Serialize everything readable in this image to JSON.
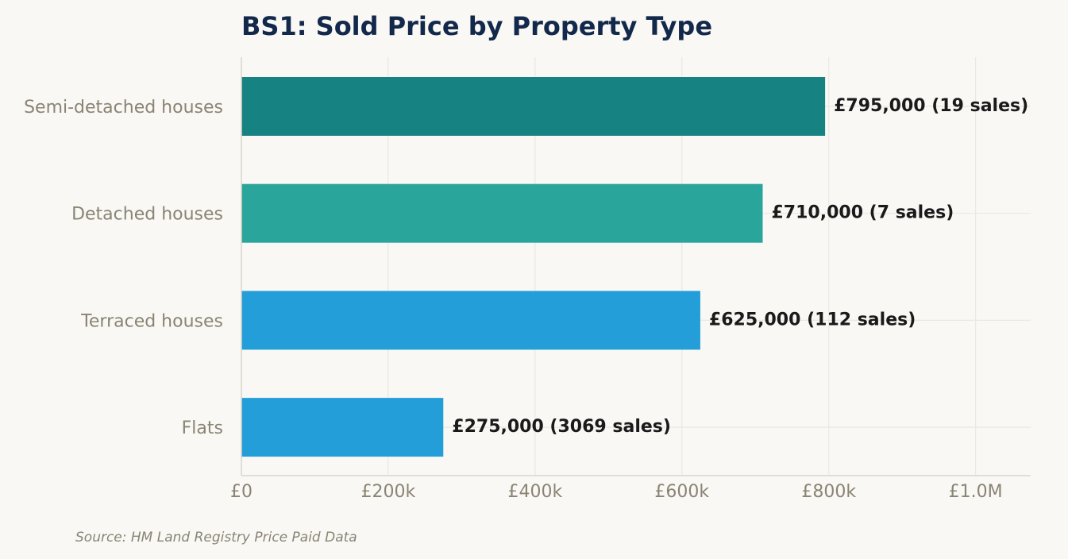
{
  "chart_data": {
    "type": "bar",
    "orientation": "horizontal",
    "title": "BS1: Sold Price by Property Type",
    "categories": [
      "Semi-detached houses",
      "Detached houses",
      "Terraced houses",
      "Flats"
    ],
    "values": [
      795000,
      710000,
      625000,
      275000
    ],
    "value_labels": [
      "£795,000  (19 sales)",
      "£710,000  (7 sales)",
      "£625,000  (112 sales)",
      "£275,000  (3069 sales)"
    ],
    "bar_colors": [
      "#178282",
      "#2aa59b",
      "#239ed9",
      "#239ed9"
    ],
    "xlim": [
      0,
      1075000
    ],
    "xticks": [
      0,
      200000,
      400000,
      600000,
      800000,
      1000000
    ],
    "xtick_labels": [
      "£0",
      "£200k",
      "£400k",
      "£600k",
      "£800k",
      "£1.0M"
    ],
    "xlabel": "",
    "ylabel": "",
    "grid": "vertical",
    "legend": "none"
  },
  "footer": {
    "source": "Source: HM Land Registry Price Paid Data"
  },
  "colors": {
    "background": "#f9f8f4",
    "title": "#13294b",
    "axis_text": "#8a8474",
    "gridline": "#ebe8e1",
    "axis_line": "#d9d6cc"
  }
}
